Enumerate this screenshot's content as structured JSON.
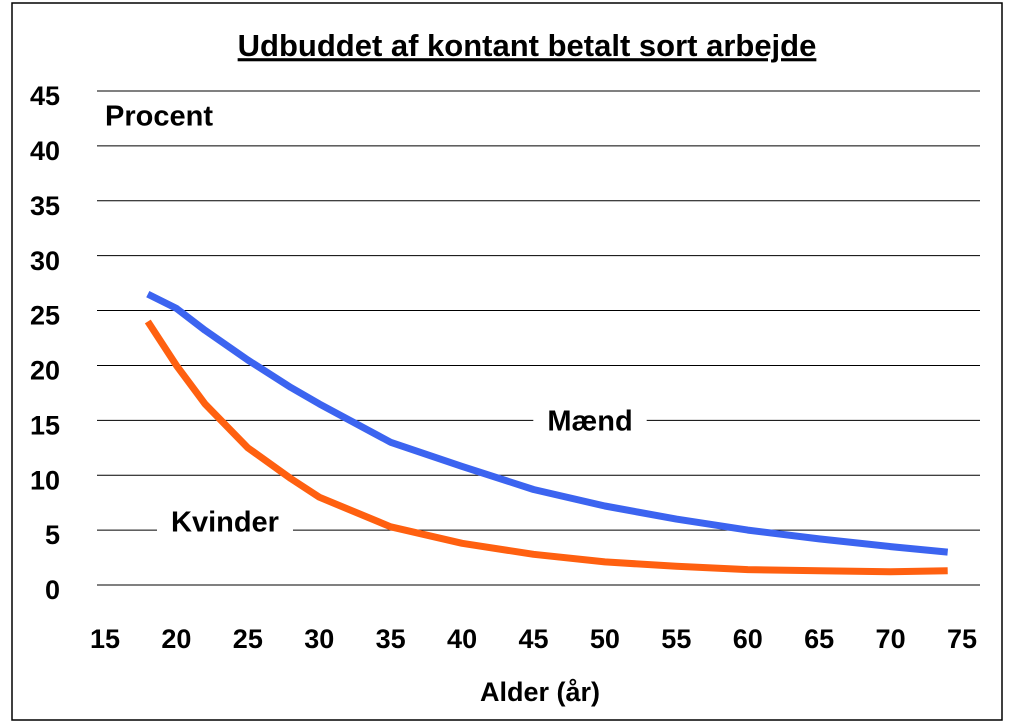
{
  "chart_data": {
    "type": "line",
    "title": "Udbuddet af kontant betalt sort arbejde",
    "xlabel": "Alder (år)",
    "annotations": [
      "Procent",
      "Mænd",
      "Kvinder"
    ],
    "x": [
      18,
      20,
      22,
      25,
      28,
      30,
      35,
      40,
      45,
      50,
      55,
      60,
      65,
      70,
      74
    ],
    "series": [
      {
        "name": "Mænd",
        "color": "#3c64f0",
        "values": [
          26.5,
          25.2,
          23.2,
          20.5,
          18,
          16.5,
          13,
          10.8,
          8.7,
          7.2,
          6,
          5,
          4.2,
          3.5,
          3
        ]
      },
      {
        "name": "Kvinder",
        "color": "#ff6010",
        "values": [
          24,
          20,
          16.5,
          12.5,
          9.7,
          8,
          5.3,
          3.8,
          2.8,
          2.1,
          1.7,
          1.4,
          1.3,
          1.2,
          1.3
        ]
      }
    ],
    "xlim": [
      15,
      75
    ],
    "xticks": [
      15,
      20,
      25,
      30,
      35,
      40,
      45,
      50,
      55,
      60,
      65,
      70,
      75
    ],
    "ylim": [
      0,
      45
    ],
    "yticks": [
      0,
      5,
      10,
      15,
      20,
      25,
      30,
      35,
      40,
      45
    ],
    "grid": true
  }
}
